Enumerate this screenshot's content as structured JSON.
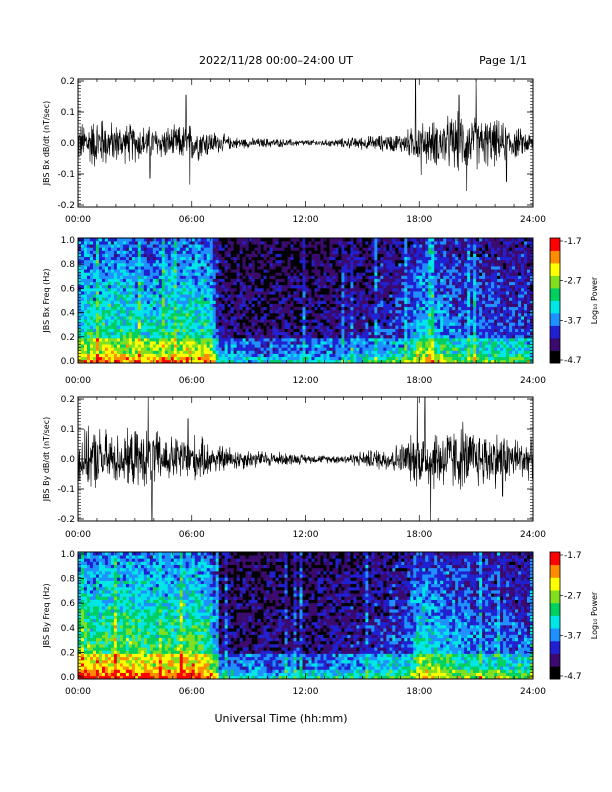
{
  "header": {
    "title": "2022/11/28  00:00–24:00 UT",
    "page": "Page 1/1"
  },
  "x_axis": {
    "label": "Universal Time (hh:mm)",
    "ticks": [
      "00:00",
      "06:00",
      "12:00",
      "18:00",
      "24:00"
    ]
  },
  "colorbar": {
    "label": "Log₁₀ Power",
    "ticks": [
      "-1.7",
      "-2.7",
      "-3.7",
      "-4.7"
    ],
    "colors": [
      "#000000",
      "#3a0a6e",
      "#2020d0",
      "#1e90ff",
      "#00e5e5",
      "#00d060",
      "#80e020",
      "#ffff00",
      "#ff8c00",
      "#ff0000"
    ]
  },
  "chart_data": [
    {
      "type": "line",
      "ylabel": "JBS Bx dB/dt (nT/sec)",
      "xlim": [
        0,
        24
      ],
      "ylim": [
        -0.2,
        0.2
      ],
      "yticks": [
        "0.2",
        "0.1",
        "0.0",
        "-0.1",
        "-0.2"
      ],
      "envelope": {
        "hours": [
          0,
          1,
          2,
          3,
          4,
          5,
          6,
          7,
          8,
          9,
          10,
          11,
          12,
          13,
          14,
          15,
          16,
          17,
          18,
          19,
          20,
          21,
          22,
          23,
          24
        ],
        "amplitude": [
          0.06,
          0.08,
          0.06,
          0.06,
          0.05,
          0.05,
          0.06,
          0.04,
          0.02,
          0.015,
          0.015,
          0.012,
          0.01,
          0.01,
          0.015,
          0.02,
          0.025,
          0.03,
          0.06,
          0.07,
          0.09,
          0.08,
          0.07,
          0.05,
          0.03
        ]
      },
      "spikes": [
        [
          1.3,
          0.07
        ],
        [
          3.8,
          -0.11
        ],
        [
          5.7,
          0.15
        ],
        [
          5.9,
          -0.13
        ],
        [
          17.8,
          0.21
        ],
        [
          18.1,
          -0.1
        ],
        [
          20.1,
          0.15
        ],
        [
          20.5,
          -0.15
        ],
        [
          21.0,
          0.21
        ],
        [
          22.6,
          -0.12
        ]
      ]
    },
    {
      "type": "heatmap",
      "ylabel": "JBS Bx Freq (Hz)",
      "xlim": [
        0,
        24
      ],
      "ylim": [
        0,
        1.0
      ],
      "yticks": [
        "1.0",
        "0.8",
        "0.6",
        "0.4",
        "0.2",
        "0.0"
      ],
      "zlim": [
        -4.7,
        -1.7
      ],
      "activity_hours": [
        0,
        2,
        4,
        6,
        7,
        7.5,
        9,
        12,
        15,
        17.5,
        18,
        20,
        22,
        24
      ],
      "activity_level": [
        0.55,
        0.6,
        0.55,
        0.6,
        0.55,
        0.15,
        0.12,
        0.12,
        0.18,
        0.3,
        0.5,
        0.35,
        0.3,
        0.28
      ]
    },
    {
      "type": "line",
      "ylabel": "JBS By dB/dt (nT/sec)",
      "xlim": [
        0,
        24
      ],
      "ylim": [
        -0.2,
        0.2
      ],
      "yticks": [
        "0.2",
        "0.1",
        "0.0",
        "-0.1",
        "-0.2"
      ],
      "envelope": {
        "hours": [
          0,
          1,
          2,
          3,
          4,
          5,
          6,
          7,
          8,
          9,
          10,
          11,
          12,
          13,
          14,
          15,
          16,
          17,
          18,
          19,
          20,
          21,
          22,
          23,
          24
        ],
        "amplitude": [
          0.08,
          0.1,
          0.08,
          0.09,
          0.09,
          0.07,
          0.08,
          0.05,
          0.04,
          0.03,
          0.025,
          0.02,
          0.015,
          0.012,
          0.015,
          0.025,
          0.035,
          0.05,
          0.09,
          0.1,
          0.1,
          0.09,
          0.09,
          0.07,
          0.06
        ]
      },
      "spikes": [
        [
          3.7,
          0.2
        ],
        [
          3.9,
          -0.21
        ],
        [
          5.8,
          0.13
        ],
        [
          17.9,
          0.2
        ],
        [
          18.3,
          0.2
        ],
        [
          18.6,
          -0.2
        ],
        [
          20.3,
          0.12
        ],
        [
          22.4,
          -0.12
        ]
      ]
    },
    {
      "type": "heatmap",
      "ylabel": "JBS By Freq (Hz)",
      "xlim": [
        0,
        24
      ],
      "ylim": [
        0,
        1.0
      ],
      "yticks": [
        "1.0",
        "0.8",
        "0.6",
        "0.4",
        "0.2",
        "0.0"
      ],
      "zlim": [
        -4.7,
        -1.7
      ],
      "activity_hours": [
        0,
        2,
        4,
        6,
        7,
        7.5,
        9,
        12,
        15,
        17.5,
        18,
        20,
        22,
        24
      ],
      "activity_level": [
        0.65,
        0.7,
        0.65,
        0.7,
        0.62,
        0.15,
        0.13,
        0.13,
        0.2,
        0.32,
        0.55,
        0.4,
        0.33,
        0.3
      ]
    }
  ]
}
